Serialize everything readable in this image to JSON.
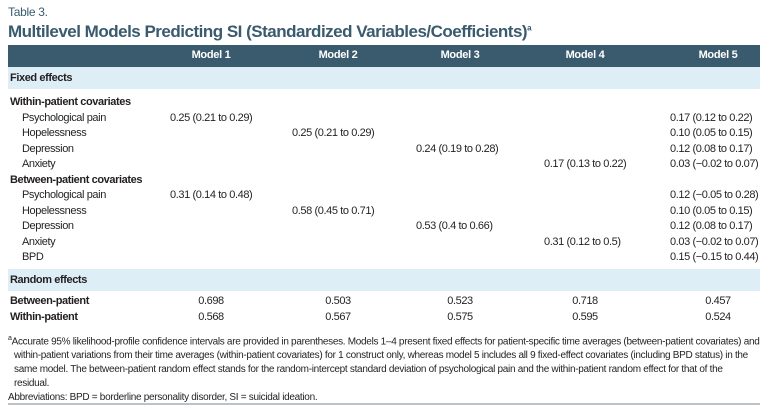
{
  "table_label": "Table 3.",
  "title": "Multilevel Models Predicting SI (Standardized Variables/Coefficients)",
  "title_sup": "a",
  "columns": [
    "Model 1",
    "Model 2",
    "Model 3",
    "Model 4",
    "Model 5"
  ],
  "sections": {
    "fixed": "Fixed effects",
    "random": "Random effects"
  },
  "within": {
    "heading": "Within-patient covariates",
    "rows": [
      {
        "label": "Psychological pain",
        "values": [
          "0.25 (0.21 to 0.29)",
          "",
          "",
          "",
          "0.17 (0.12 to 0.22)"
        ]
      },
      {
        "label": "Hopelessness",
        "values": [
          "",
          "0.25 (0.21 to 0.29)",
          "",
          "",
          "0.10 (0.05 to 0.15)"
        ]
      },
      {
        "label": "Depression",
        "values": [
          "",
          "",
          "0.24 (0.19 to 0.28)",
          "",
          "0.12 (0.08 to 0.17)"
        ]
      },
      {
        "label": "Anxiety",
        "values": [
          "",
          "",
          "",
          "0.17 (0.13 to 0.22)",
          "0.03 (−0.02 to 0.07)"
        ]
      }
    ]
  },
  "between": {
    "heading": "Between-patient covariates",
    "rows": [
      {
        "label": "Psychological pain",
        "values": [
          "0.31 (0.14 to 0.48)",
          "",
          "",
          "",
          "0.12 (−0.05 to 0.28)"
        ]
      },
      {
        "label": "Hopelessness",
        "values": [
          "",
          "0.58 (0.45 to 0.71)",
          "",
          "",
          "0.10 (0.05 to 0.15)"
        ]
      },
      {
        "label": "Depression",
        "values": [
          "",
          "",
          "0.53 (0.4 to 0.66)",
          "",
          "0.12 (0.08 to 0.17)"
        ]
      },
      {
        "label": "Anxiety",
        "values": [
          "",
          "",
          "",
          "0.31 (0.12 to 0.5)",
          "0.03 (−0.02 to 0.07)"
        ]
      },
      {
        "label": "BPD",
        "values": [
          "",
          "",
          "",
          "",
          "0.15 (−0.15 to 0.44)"
        ]
      }
    ]
  },
  "random_rows": [
    {
      "label": "Between-patient",
      "values": [
        "0.698",
        "0.503",
        "0.523",
        "0.718",
        "0.457"
      ]
    },
    {
      "label": "Within-patient",
      "values": [
        "0.568",
        "0.567",
        "0.575",
        "0.595",
        "0.524"
      ]
    }
  ],
  "footnote_mark": "a",
  "footnote": "Accurate 95% likelihood-profile confidence intervals are provided in parentheses. Models 1–4 present fixed effects for patient-specific time averages (between-patient covariates) and within-patient variations from their time averages (within-patient covariates) for 1 construct only, whereas model 5 includes all 9 fixed-effect covariates (including BPD status) in the same model. The between-patient random effect stands for the random-intercept standard deviation of psychological pain and the within-patient random effect for that of the residual.",
  "abbreviations": "Abbreviations: BPD = borderline personality disorder, SI = suicidal ideation."
}
